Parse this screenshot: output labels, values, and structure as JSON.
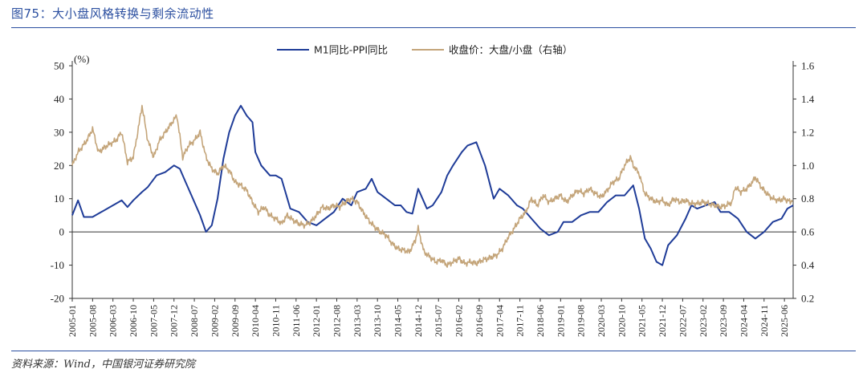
{
  "figure": {
    "title": "图75：大小盘风格转换与剩余流动性",
    "source": "资料来源：Wind，中国银河证券研究院"
  },
  "chart_data": {
    "type": "line",
    "title": "图75：大小盘风格转换与剩余流动性",
    "y_unit": "(%)",
    "ylim_left": [
      -20,
      50
    ],
    "yticks_left": [
      -20,
      -10,
      0,
      10,
      20,
      30,
      40,
      50
    ],
    "ylim_right": [
      0.2,
      1.6
    ],
    "yticks_right": [
      0.2,
      0.4,
      0.6,
      0.8,
      1.0,
      1.2,
      1.4,
      1.6
    ],
    "x_start": "2005-01",
    "x_end": "2025-09",
    "x_ticks": [
      "2005-01",
      "2005-08",
      "2006-03",
      "2006-10",
      "2007-05",
      "2007-12",
      "2008-07",
      "2009-02",
      "2009-09",
      "2010-04",
      "2010-11",
      "2011-06",
      "2012-01",
      "2012-08",
      "2013-03",
      "2013-10",
      "2014-05",
      "2014-12",
      "2015-07",
      "2016-02",
      "2016-09",
      "2017-04",
      "2017-11",
      "2018-06",
      "2019-01",
      "2019-08",
      "2020-03",
      "2020-10",
      "2021-05",
      "2021-12",
      "2022-07",
      "2023-02",
      "2023-09",
      "2024-04",
      "2024-11",
      "2025-06"
    ],
    "colors": {
      "m1_ppi": "#1f3c98",
      "cap_ratio": "#c4a57a",
      "negative_tick": "#d42020"
    },
    "series": [
      {
        "name": "M1同比-PPI同比",
        "axis": "left",
        "points": [
          [
            "2005-01",
            5
          ],
          [
            "2005-03",
            9.5
          ],
          [
            "2005-05",
            4.5
          ],
          [
            "2005-08",
            4.5
          ],
          [
            "2005-11",
            6
          ],
          [
            "2006-03",
            8
          ],
          [
            "2006-06",
            9.5
          ],
          [
            "2006-08",
            7.5
          ],
          [
            "2006-10",
            9.5
          ],
          [
            "2007-01",
            12
          ],
          [
            "2007-03",
            13.5
          ],
          [
            "2007-06",
            17
          ],
          [
            "2007-09",
            18
          ],
          [
            "2007-12",
            20
          ],
          [
            "2008-02",
            19
          ],
          [
            "2008-04",
            15
          ],
          [
            "2008-06",
            11
          ],
          [
            "2008-09",
            5
          ],
          [
            "2008-11",
            0
          ],
          [
            "2009-01",
            2
          ],
          [
            "2009-03",
            10
          ],
          [
            "2009-05",
            22
          ],
          [
            "2009-07",
            30
          ],
          [
            "2009-09",
            35
          ],
          [
            "2009-11",
            38
          ],
          [
            "2010-01",
            35
          ],
          [
            "2010-03",
            33
          ],
          [
            "2010-04",
            24
          ],
          [
            "2010-06",
            20
          ],
          [
            "2010-09",
            17
          ],
          [
            "2010-11",
            17
          ],
          [
            "2011-01",
            16
          ],
          [
            "2011-04",
            7
          ],
          [
            "2011-07",
            6
          ],
          [
            "2011-10",
            3
          ],
          [
            "2012-01",
            2
          ],
          [
            "2012-04",
            4
          ],
          [
            "2012-07",
            6
          ],
          [
            "2012-10",
            10
          ],
          [
            "2013-01",
            8
          ],
          [
            "2013-03",
            12
          ],
          [
            "2013-06",
            13
          ],
          [
            "2013-08",
            16
          ],
          [
            "2013-10",
            12
          ],
          [
            "2014-01",
            10
          ],
          [
            "2014-04",
            8
          ],
          [
            "2014-06",
            8
          ],
          [
            "2014-08",
            6
          ],
          [
            "2014-10",
            5.5
          ],
          [
            "2014-12",
            13
          ],
          [
            "2015-03",
            7
          ],
          [
            "2015-05",
            8
          ],
          [
            "2015-08",
            12
          ],
          [
            "2015-10",
            17
          ],
          [
            "2015-12",
            20
          ],
          [
            "2016-03",
            24
          ],
          [
            "2016-05",
            26
          ],
          [
            "2016-08",
            27
          ],
          [
            "2016-11",
            20
          ],
          [
            "2017-02",
            10
          ],
          [
            "2017-04",
            13
          ],
          [
            "2017-07",
            11
          ],
          [
            "2017-10",
            8
          ],
          [
            "2017-12",
            7
          ],
          [
            "2018-03",
            4
          ],
          [
            "2018-06",
            1
          ],
          [
            "2018-09",
            -1
          ],
          [
            "2018-12",
            0
          ],
          [
            "2019-02",
            3
          ],
          [
            "2019-05",
            3
          ],
          [
            "2019-08",
            5
          ],
          [
            "2019-11",
            6
          ],
          [
            "2020-02",
            6
          ],
          [
            "2020-05",
            9
          ],
          [
            "2020-08",
            11
          ],
          [
            "2020-11",
            11
          ],
          [
            "2021-02",
            14
          ],
          [
            "2021-04",
            7
          ],
          [
            "2021-06",
            -2
          ],
          [
            "2021-08",
            -5
          ],
          [
            "2021-10",
            -9
          ],
          [
            "2021-12",
            -10
          ],
          [
            "2022-02",
            -4
          ],
          [
            "2022-05",
            -1
          ],
          [
            "2022-08",
            4
          ],
          [
            "2022-10",
            8
          ],
          [
            "2022-12",
            7
          ],
          [
            "2023-03",
            8
          ],
          [
            "2023-06",
            9
          ],
          [
            "2023-08",
            6
          ],
          [
            "2023-11",
            6
          ],
          [
            "2024-02",
            4
          ],
          [
            "2024-05",
            0
          ],
          [
            "2024-08",
            -2
          ],
          [
            "2024-11",
            0
          ],
          [
            "2025-02",
            3
          ],
          [
            "2025-05",
            4
          ],
          [
            "2025-07",
            7
          ],
          [
            "2025-09",
            8
          ]
        ]
      },
      {
        "name": "收盘价：大盘/小盘（右轴）",
        "axis": "right",
        "points": [
          [
            "2005-01",
            1.0
          ],
          [
            "2005-03",
            1.08
          ],
          [
            "2005-06",
            1.15
          ],
          [
            "2005-08",
            1.22
          ],
          [
            "2005-10",
            1.08
          ],
          [
            "2006-01",
            1.12
          ],
          [
            "2006-04",
            1.15
          ],
          [
            "2006-06",
            1.2
          ],
          [
            "2006-08",
            1.02
          ],
          [
            "2006-10",
            1.05
          ],
          [
            "2006-12",
            1.25
          ],
          [
            "2007-01",
            1.36
          ],
          [
            "2007-03",
            1.15
          ],
          [
            "2007-05",
            1.05
          ],
          [
            "2007-07",
            1.15
          ],
          [
            "2007-09",
            1.2
          ],
          [
            "2007-11",
            1.25
          ],
          [
            "2008-01",
            1.3
          ],
          [
            "2008-03",
            1.05
          ],
          [
            "2008-05",
            1.12
          ],
          [
            "2008-07",
            1.15
          ],
          [
            "2008-09",
            1.2
          ],
          [
            "2008-11",
            1.05
          ],
          [
            "2009-01",
            0.98
          ],
          [
            "2009-03",
            0.95
          ],
          [
            "2009-05",
            1.0
          ],
          [
            "2009-07",
            0.97
          ],
          [
            "2009-09",
            0.9
          ],
          [
            "2009-11",
            0.88
          ],
          [
            "2010-01",
            0.85
          ],
          [
            "2010-03",
            0.78
          ],
          [
            "2010-05",
            0.72
          ],
          [
            "2010-07",
            0.75
          ],
          [
            "2010-09",
            0.7
          ],
          [
            "2010-11",
            0.68
          ],
          [
            "2011-01",
            0.65
          ],
          [
            "2011-03",
            0.7
          ],
          [
            "2011-05",
            0.67
          ],
          [
            "2011-07",
            0.65
          ],
          [
            "2011-09",
            0.64
          ],
          [
            "2011-11",
            0.66
          ],
          [
            "2012-01",
            0.7
          ],
          [
            "2012-03",
            0.75
          ],
          [
            "2012-05",
            0.74
          ],
          [
            "2012-07",
            0.76
          ],
          [
            "2012-09",
            0.75
          ],
          [
            "2012-11",
            0.78
          ],
          [
            "2013-01",
            0.8
          ],
          [
            "2013-03",
            0.78
          ],
          [
            "2013-05",
            0.72
          ],
          [
            "2013-07",
            0.67
          ],
          [
            "2013-09",
            0.63
          ],
          [
            "2013-11",
            0.6
          ],
          [
            "2014-01",
            0.58
          ],
          [
            "2014-03",
            0.53
          ],
          [
            "2014-05",
            0.5
          ],
          [
            "2014-07",
            0.49
          ],
          [
            "2014-09",
            0.48
          ],
          [
            "2014-11",
            0.55
          ],
          [
            "2014-12",
            0.62
          ],
          [
            "2015-02",
            0.48
          ],
          [
            "2015-04",
            0.45
          ],
          [
            "2015-06",
            0.42
          ],
          [
            "2015-08",
            0.43
          ],
          [
            "2015-10",
            0.4
          ],
          [
            "2015-12",
            0.42
          ],
          [
            "2016-02",
            0.44
          ],
          [
            "2016-04",
            0.41
          ],
          [
            "2016-06",
            0.42
          ],
          [
            "2016-08",
            0.41
          ],
          [
            "2016-10",
            0.43
          ],
          [
            "2016-12",
            0.44
          ],
          [
            "2017-03",
            0.46
          ],
          [
            "2017-05",
            0.5
          ],
          [
            "2017-07",
            0.57
          ],
          [
            "2017-09",
            0.62
          ],
          [
            "2017-11",
            0.68
          ],
          [
            "2018-01",
            0.72
          ],
          [
            "2018-03",
            0.8
          ],
          [
            "2018-05",
            0.76
          ],
          [
            "2018-07",
            0.82
          ],
          [
            "2018-09",
            0.78
          ],
          [
            "2018-11",
            0.8
          ],
          [
            "2019-01",
            0.82
          ],
          [
            "2019-03",
            0.78
          ],
          [
            "2019-05",
            0.82
          ],
          [
            "2019-07",
            0.85
          ],
          [
            "2019-09",
            0.83
          ],
          [
            "2019-11",
            0.86
          ],
          [
            "2020-01",
            0.83
          ],
          [
            "2020-03",
            0.81
          ],
          [
            "2020-05",
            0.85
          ],
          [
            "2020-07",
            0.9
          ],
          [
            "2020-09",
            0.92
          ],
          [
            "2020-11",
            1.0
          ],
          [
            "2021-01",
            1.05
          ],
          [
            "2021-02",
            1.0
          ],
          [
            "2021-04",
            0.95
          ],
          [
            "2021-06",
            0.83
          ],
          [
            "2021-08",
            0.8
          ],
          [
            "2021-10",
            0.78
          ],
          [
            "2021-12",
            0.79
          ],
          [
            "2022-02",
            0.76
          ],
          [
            "2022-04",
            0.8
          ],
          [
            "2022-06",
            0.78
          ],
          [
            "2022-08",
            0.79
          ],
          [
            "2022-10",
            0.77
          ],
          [
            "2022-12",
            0.77
          ],
          [
            "2023-02",
            0.78
          ],
          [
            "2023-04",
            0.77
          ],
          [
            "2023-06",
            0.76
          ],
          [
            "2023-08",
            0.75
          ],
          [
            "2023-10",
            0.76
          ],
          [
            "2023-12",
            0.78
          ],
          [
            "2024-01",
            0.87
          ],
          [
            "2024-03",
            0.84
          ],
          [
            "2024-05",
            0.86
          ],
          [
            "2024-07",
            0.9
          ],
          [
            "2024-08",
            0.93
          ],
          [
            "2024-10",
            0.87
          ],
          [
            "2024-12",
            0.83
          ],
          [
            "2025-02",
            0.8
          ],
          [
            "2025-04",
            0.79
          ],
          [
            "2025-06",
            0.8
          ],
          [
            "2025-08",
            0.78
          ],
          [
            "2025-09",
            0.8
          ]
        ]
      }
    ]
  }
}
